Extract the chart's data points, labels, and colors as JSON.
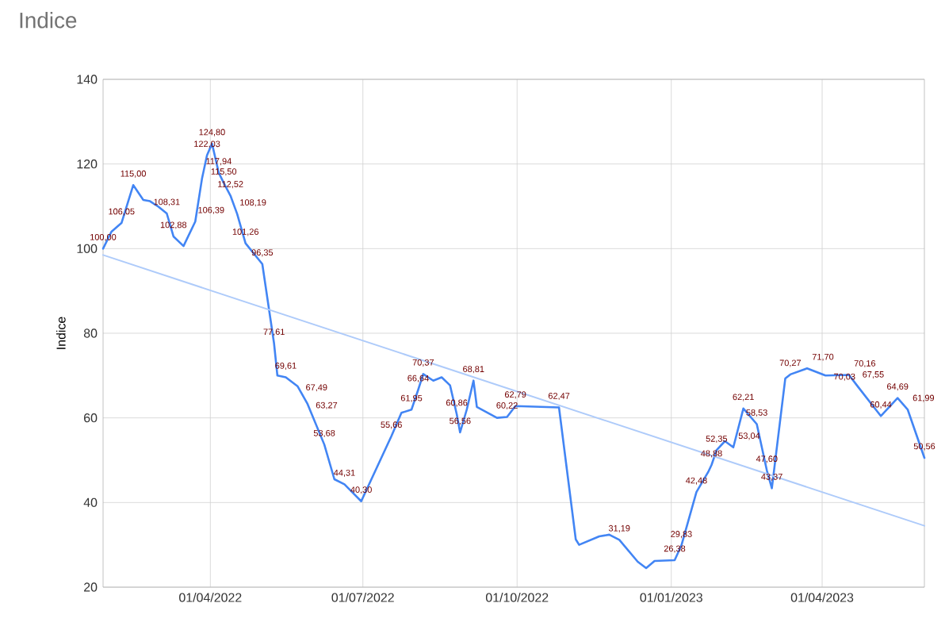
{
  "chart_data": {
    "type": "line",
    "title": "Indice",
    "ylabel": "Indice",
    "xlim": [
      "2022-01-27",
      "2023-06-01"
    ],
    "ylim": [
      20,
      140
    ],
    "yticks": [
      20,
      40,
      60,
      80,
      100,
      120,
      140
    ],
    "xticks": [
      {
        "value": "2022-04-01",
        "label": "01/04/2022"
      },
      {
        "value": "2022-07-01",
        "label": "01/07/2022"
      },
      {
        "value": "2022-10-01",
        "label": "01/10/2022"
      },
      {
        "value": "2023-01-01",
        "label": "01/01/2023"
      },
      {
        "value": "2023-04-01",
        "label": "01/04/2023"
      }
    ],
    "grid": true,
    "legend": false,
    "marker": "none",
    "line_style": "solid",
    "series": [
      {
        "color": "#4285f4",
        "x": [
          "2022-01-27",
          "2022-02-01",
          "2022-02-07",
          "2022-02-14",
          "2022-02-20",
          "2022-02-24",
          "2022-03-01",
          "2022-03-06",
          "2022-03-10",
          "2022-03-16",
          "2022-03-23",
          "2022-03-27",
          "2022-03-30",
          "2022-04-02",
          "2022-04-06",
          "2022-04-09",
          "2022-04-13",
          "2022-04-17",
          "2022-04-22",
          "2022-05-02",
          "2022-05-09",
          "2022-05-11",
          "2022-05-16",
          "2022-05-23",
          "2022-05-29",
          "2022-06-08",
          "2022-06-14",
          "2022-06-20",
          "2022-06-30",
          "2022-07-18",
          "2022-07-24",
          "2022-07-30",
          "2022-08-03",
          "2022-08-06",
          "2022-08-12",
          "2022-08-17",
          "2022-08-22",
          "2022-08-26",
          "2022-08-28",
          "2022-09-01",
          "2022-09-05",
          "2022-09-07",
          "2022-09-19",
          "2022-09-25",
          "2022-09-30",
          "2022-10-26",
          "2022-11-05",
          "2022-11-07",
          "2022-11-19",
          "2022-11-25",
          "2022-12-01",
          "2022-12-12",
          "2022-12-17",
          "2022-12-22",
          "2023-01-03",
          "2023-01-07",
          "2023-01-16",
          "2023-01-23",
          "2023-01-25",
          "2023-01-28",
          "2023-02-02",
          "2023-02-07",
          "2023-02-13",
          "2023-02-21",
          "2023-02-27",
          "2023-03-02",
          "2023-03-10",
          "2023-03-13",
          "2023-03-23",
          "2023-04-03",
          "2023-04-17",
          "2023-04-22",
          "2023-05-06",
          "2023-05-16",
          "2023-05-22",
          "2023-06-01"
        ],
        "values": [
          100.0,
          104,
          106.05,
          115.0,
          111.5,
          111.2,
          109.9,
          108.31,
          102.88,
          100.6,
          106.39,
          116.5,
          122.03,
          124.8,
          117.94,
          115.5,
          112.52,
          108.19,
          101.26,
          96.35,
          77.61,
          70,
          69.61,
          67.49,
          63.27,
          53.68,
          45.5,
          44.31,
          40.3,
          55.66,
          61.2,
          61.95,
          66.64,
          70.37,
          68.8,
          69.6,
          67.7,
          60.86,
          56.56,
          62,
          68.81,
          62.6,
          60,
          60.22,
          62.79,
          62.47,
          31.3,
          30,
          32,
          32.4,
          31.19,
          26,
          24.5,
          26.2,
          26.38,
          29.83,
          42.48,
          47.2,
          48.88,
          52.35,
          54.5,
          53.04,
          62.21,
          58.53,
          47.6,
          43.37,
          69.3,
          70.27,
          71.7,
          70.03,
          70.16,
          67.55,
          60.44,
          64.69,
          61.99,
          50.56
        ],
        "value_labels": [
          "100,00",
          null,
          "106,05",
          "115,00",
          null,
          null,
          null,
          "108,31",
          "102,88",
          null,
          "106,39",
          null,
          "122,03",
          "124,80",
          "117,94",
          "115,50",
          "112,52",
          "108,19",
          "101,26",
          "96,35",
          "77,61",
          null,
          "69,61",
          "67,49",
          "63,27",
          "53,68",
          null,
          "44,31",
          "40,30",
          "55,66",
          null,
          "61,95",
          "66,64",
          "70,37",
          null,
          null,
          null,
          "60,86",
          "56,56",
          null,
          "68,81",
          null,
          null,
          "60,22",
          "62,79",
          "62,47",
          null,
          null,
          null,
          null,
          "31,19",
          null,
          null,
          null,
          "26,38",
          "29,83",
          "42,48",
          null,
          "48,88",
          "52,35",
          null,
          "53,04",
          "62,21",
          "58,53",
          "47,60",
          "43,37",
          null,
          "70,27",
          "71,70",
          "70,03",
          "70,16",
          "67,55",
          "60,44",
          "64,69",
          "61,99",
          "50,56"
        ]
      },
      {
        "type": "line",
        "color": "#aecbfa",
        "x": [
          "2022-01-27",
          "2023-06-01"
        ],
        "values": [
          98.5,
          34.5
        ]
      }
    ]
  }
}
